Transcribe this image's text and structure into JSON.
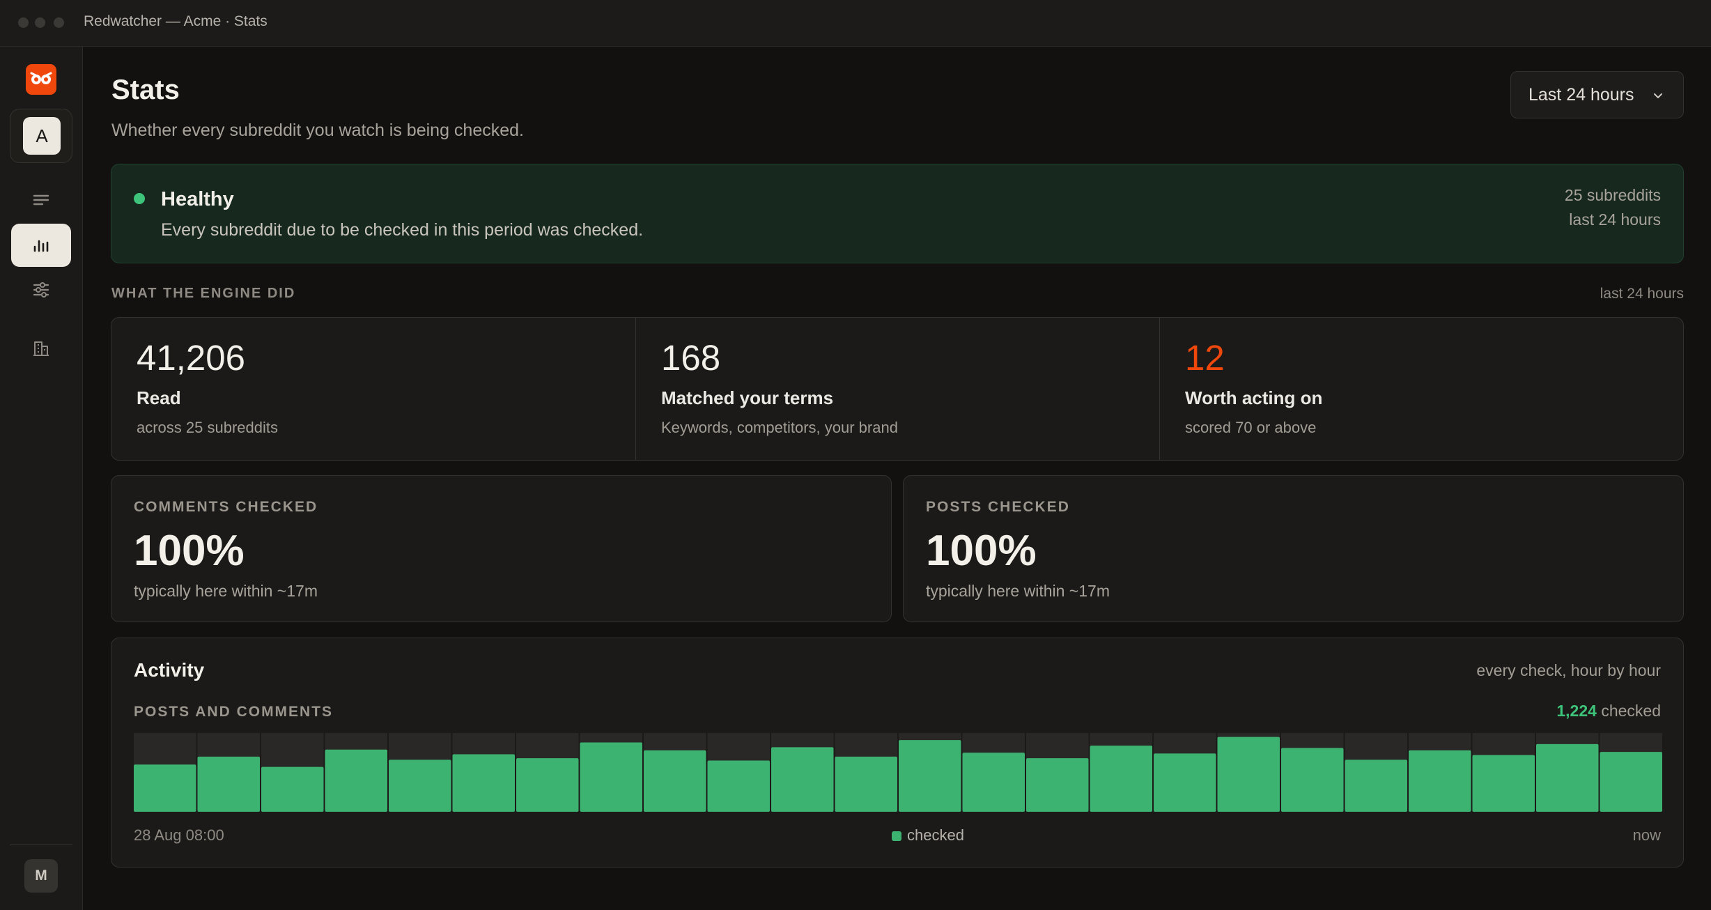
{
  "window": {
    "title": "Redwatcher — Acme · Stats"
  },
  "sidebar": {
    "logo_icon": "owl-logo-icon",
    "workspace_initial": "A",
    "items": [
      {
        "name": "feed",
        "icon": "list-icon",
        "active": false
      },
      {
        "name": "stats",
        "icon": "bar-chart-icon",
        "active": true
      },
      {
        "name": "filters",
        "icon": "sliders-icon",
        "active": false
      },
      {
        "name": "company",
        "icon": "building-icon",
        "active": false
      }
    ],
    "user_initial": "M"
  },
  "header": {
    "title": "Stats",
    "subtitle": "Whether every subreddit you watch is being checked.",
    "range": "Last 24 hours"
  },
  "health": {
    "status": "Healthy",
    "description": "Every subreddit due to be checked in this period was checked.",
    "subreddits": "25 subreddits",
    "period": "last 24 hours",
    "color": "#3ec47a"
  },
  "engine": {
    "label": "WHAT THE ENGINE DID",
    "period": "last 24 hours",
    "stats": [
      {
        "value": "41,206",
        "label": "Read",
        "sub": "across 25 subreddits"
      },
      {
        "value": "168",
        "label": "Matched your terms",
        "sub": "Keywords, competitors, your brand"
      },
      {
        "value": "12",
        "label": "Worth acting on",
        "sub": "scored 70 or above",
        "accent": "#f0470c"
      }
    ]
  },
  "checks": {
    "comments": {
      "label": "COMMENTS CHECKED",
      "value": "100%",
      "sub": "typically here within ~17m"
    },
    "posts": {
      "label": "POSTS CHECKED",
      "value": "100%",
      "sub": "typically here within ~17m"
    }
  },
  "activity": {
    "title": "Activity",
    "meta": "every check, hour by hour",
    "label": "POSTS AND COMMENTS",
    "count": "1,224",
    "count_suffix": "checked",
    "axis_start": "28 Aug 08:00",
    "axis_end": "now",
    "legend": "checked"
  },
  "chart_data": {
    "type": "bar",
    "series": [
      {
        "name": "checked",
        "values": [
          60,
          70,
          57,
          79,
          66,
          73,
          68,
          88,
          78,
          65,
          82,
          70,
          91,
          75,
          68,
          84,
          74,
          95,
          81,
          66,
          78,
          72,
          86,
          76
        ]
      }
    ],
    "ylim": [
      0,
      100
    ],
    "color": "#3cb371",
    "track_color": "#2a2826"
  }
}
